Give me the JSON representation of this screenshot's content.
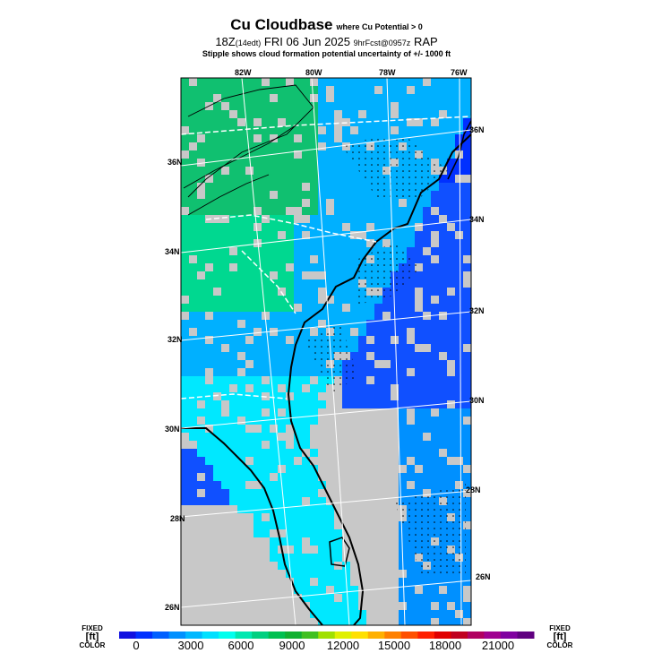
{
  "header": {
    "title": "Cu Cloudbase",
    "title_suffix": "where Cu Potential > 0",
    "time_main": "18Z",
    "time_local": "(14edt)",
    "date": "FRI 06 Jun 2025",
    "fcst": "9hrFcst@0957z",
    "model": "RAP",
    "subtitle": "Stipple shows cloud formation potential uncertainty of +/- 1000 ft"
  },
  "map": {
    "lon_labels": [
      "82W",
      "80W",
      "78W",
      "76W"
    ],
    "lat_labels_left": [
      "36N",
      "34N",
      "32N",
      "30N",
      "28N",
      "26N"
    ],
    "lat_labels_right": [
      "36N",
      "34N",
      "32N",
      "30N",
      "28N",
      "26N"
    ],
    "land_color": "#c8c8c8",
    "ocean_color": "#c8c8c8"
  },
  "colorbar": {
    "left_top": "FIXED",
    "left_unit": "[ft]",
    "left_bottom": "COLOR",
    "right_top": "FIXED",
    "right_unit": "[ft]",
    "right_bottom": "COLOR",
    "ticks": [
      "0",
      "3000",
      "6000",
      "9000",
      "12000",
      "15000",
      "18000",
      "21000"
    ],
    "colors": [
      "#1010e0",
      "#0030ff",
      "#0060ff",
      "#0090ff",
      "#00b8ff",
      "#00e0ff",
      "#00ffee",
      "#00e8b0",
      "#00d080",
      "#00c050",
      "#10b030",
      "#40c020",
      "#a0e000",
      "#e0f000",
      "#ffe000",
      "#ffb000",
      "#ff8000",
      "#ff5000",
      "#ff2000",
      "#e00000",
      "#c00020",
      "#b00060",
      "#a00090",
      "#8000a0",
      "#600080"
    ]
  }
}
